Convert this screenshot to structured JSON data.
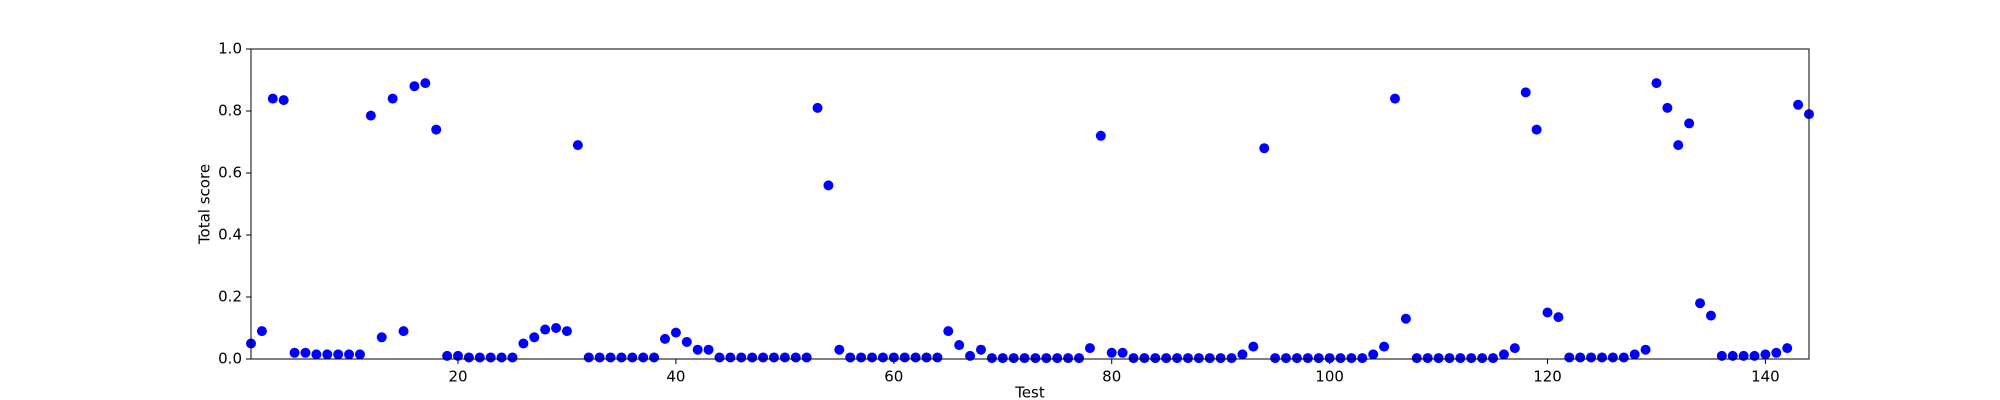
{
  "chart_data": {
    "type": "scatter",
    "xlabel": "Test",
    "ylabel": "Total score",
    "color": "#0000ff",
    "x": [
      1,
      2,
      3,
      4,
      5,
      6,
      7,
      8,
      9,
      10,
      11,
      12,
      13,
      14,
      15,
      16,
      17,
      18,
      19,
      20,
      21,
      22,
      23,
      24,
      25,
      26,
      27,
      28,
      29,
      30,
      31,
      32,
      33,
      34,
      35,
      36,
      37,
      38,
      39,
      40,
      41,
      42,
      43,
      44,
      45,
      46,
      47,
      48,
      49,
      50,
      51,
      52,
      53,
      54,
      55,
      56,
      57,
      58,
      59,
      60,
      61,
      62,
      63,
      64,
      65,
      66,
      67,
      68,
      69,
      70,
      71,
      72,
      73,
      74,
      75,
      76,
      77,
      78,
      79,
      80,
      81,
      82,
      83,
      84,
      85,
      86,
      87,
      88,
      89,
      90,
      91,
      92,
      93,
      94,
      95,
      96,
      97,
      98,
      99,
      100,
      101,
      102,
      103,
      104,
      105,
      106,
      107,
      108,
      109,
      110,
      111,
      112,
      113,
      114,
      115,
      116,
      117,
      118,
      119,
      120,
      121,
      122,
      123,
      124,
      125,
      126,
      127,
      128,
      129,
      130,
      131,
      132,
      133,
      134,
      135,
      136,
      137,
      138,
      139,
      140,
      141,
      142,
      143,
      144
    ],
    "values": [
      0.05,
      0.09,
      0.84,
      0.835,
      0.02,
      0.02,
      0.015,
      0.015,
      0.015,
      0.015,
      0.015,
      0.785,
      0.07,
      0.84,
      0.09,
      0.88,
      0.89,
      0.74,
      0.01,
      0.01,
      0.005,
      0.005,
      0.005,
      0.005,
      0.005,
      0.05,
      0.07,
      0.095,
      0.1,
      0.09,
      0.69,
      0.005,
      0.005,
      0.005,
      0.005,
      0.005,
      0.005,
      0.005,
      0.065,
      0.085,
      0.055,
      0.03,
      0.03,
      0.005,
      0.005,
      0.005,
      0.005,
      0.005,
      0.005,
      0.005,
      0.005,
      0.005,
      0.81,
      0.56,
      0.03,
      0.005,
      0.005,
      0.005,
      0.005,
      0.005,
      0.005,
      0.005,
      0.005,
      0.005,
      0.09,
      0.045,
      0.01,
      0.03,
      0.003,
      0.003,
      0.003,
      0.003,
      0.003,
      0.003,
      0.003,
      0.003,
      0.003,
      0.035,
      0.72,
      0.02,
      0.02,
      0.003,
      0.003,
      0.003,
      0.003,
      0.003,
      0.003,
      0.003,
      0.003,
      0.003,
      0.003,
      0.015,
      0.04,
      0.68,
      0.003,
      0.003,
      0.003,
      0.003,
      0.003,
      0.003,
      0.003,
      0.003,
      0.003,
      0.015,
      0.04,
      0.84,
      0.13,
      0.003,
      0.003,
      0.003,
      0.003,
      0.003,
      0.003,
      0.003,
      0.003,
      0.015,
      0.035,
      0.86,
      0.74,
      0.15,
      0.135,
      0.005,
      0.005,
      0.005,
      0.005,
      0.005,
      0.005,
      0.015,
      0.03,
      0.89,
      0.81,
      0.69,
      0.76,
      0.18,
      0.14,
      0.01,
      0.01,
      0.01,
      0.01,
      0.015,
      0.02,
      0.035,
      0.82,
      0.79
    ],
    "xlim": [
      1,
      144
    ],
    "xticks": [
      20,
      40,
      60,
      80,
      100,
      120,
      140
    ],
    "ylim": [
      0,
      1
    ],
    "yticks": [
      {
        "value": 0,
        "label": "0.0"
      },
      0.2,
      0.4,
      0.6,
      0.8,
      {
        "value": 1,
        "label": "1.0"
      }
    ]
  }
}
